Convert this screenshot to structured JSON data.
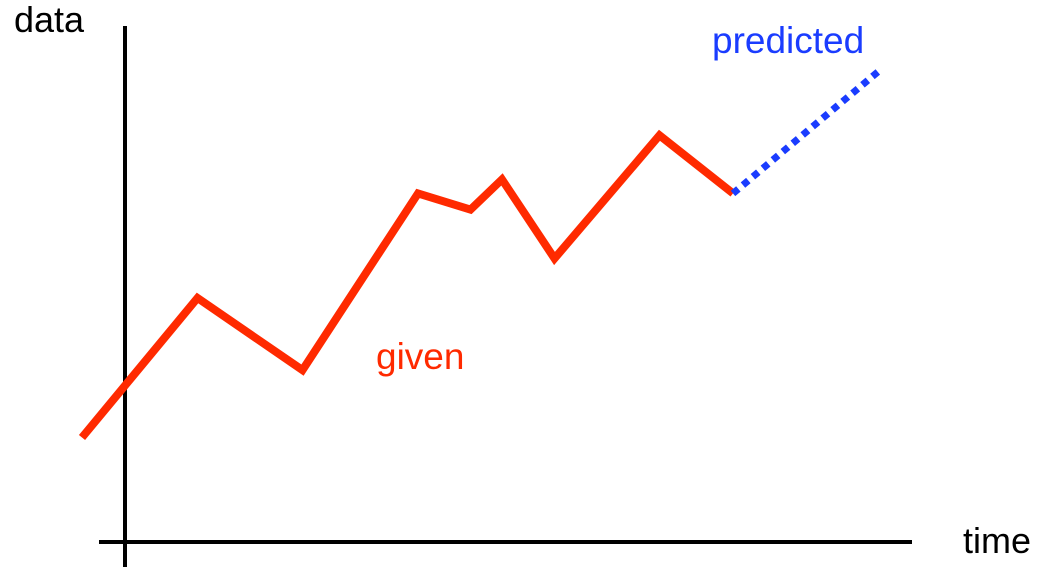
{
  "axes": {
    "y_label": "data",
    "x_label": "time"
  },
  "colors": {
    "axis": "#000000",
    "given": "#ff2a00",
    "predicted": "#1a3cff"
  },
  "chart_data": {
    "type": "line",
    "title": "",
    "xlabel": "time",
    "ylabel": "data",
    "series": [
      {
        "name": "given",
        "style": "solid",
        "x": [
          0,
          1.1,
          2.1,
          3.2,
          3.7,
          4.0,
          4.5,
          5.5,
          6.2
        ],
        "y": [
          1.0,
          4.0,
          2.45,
          6.25,
          5.9,
          6.55,
          4.85,
          7.5,
          6.25
        ]
      },
      {
        "name": "predicted",
        "style": "dotted",
        "x": [
          6.2,
          7.6
        ],
        "y": [
          6.25,
          8.9
        ]
      }
    ]
  }
}
